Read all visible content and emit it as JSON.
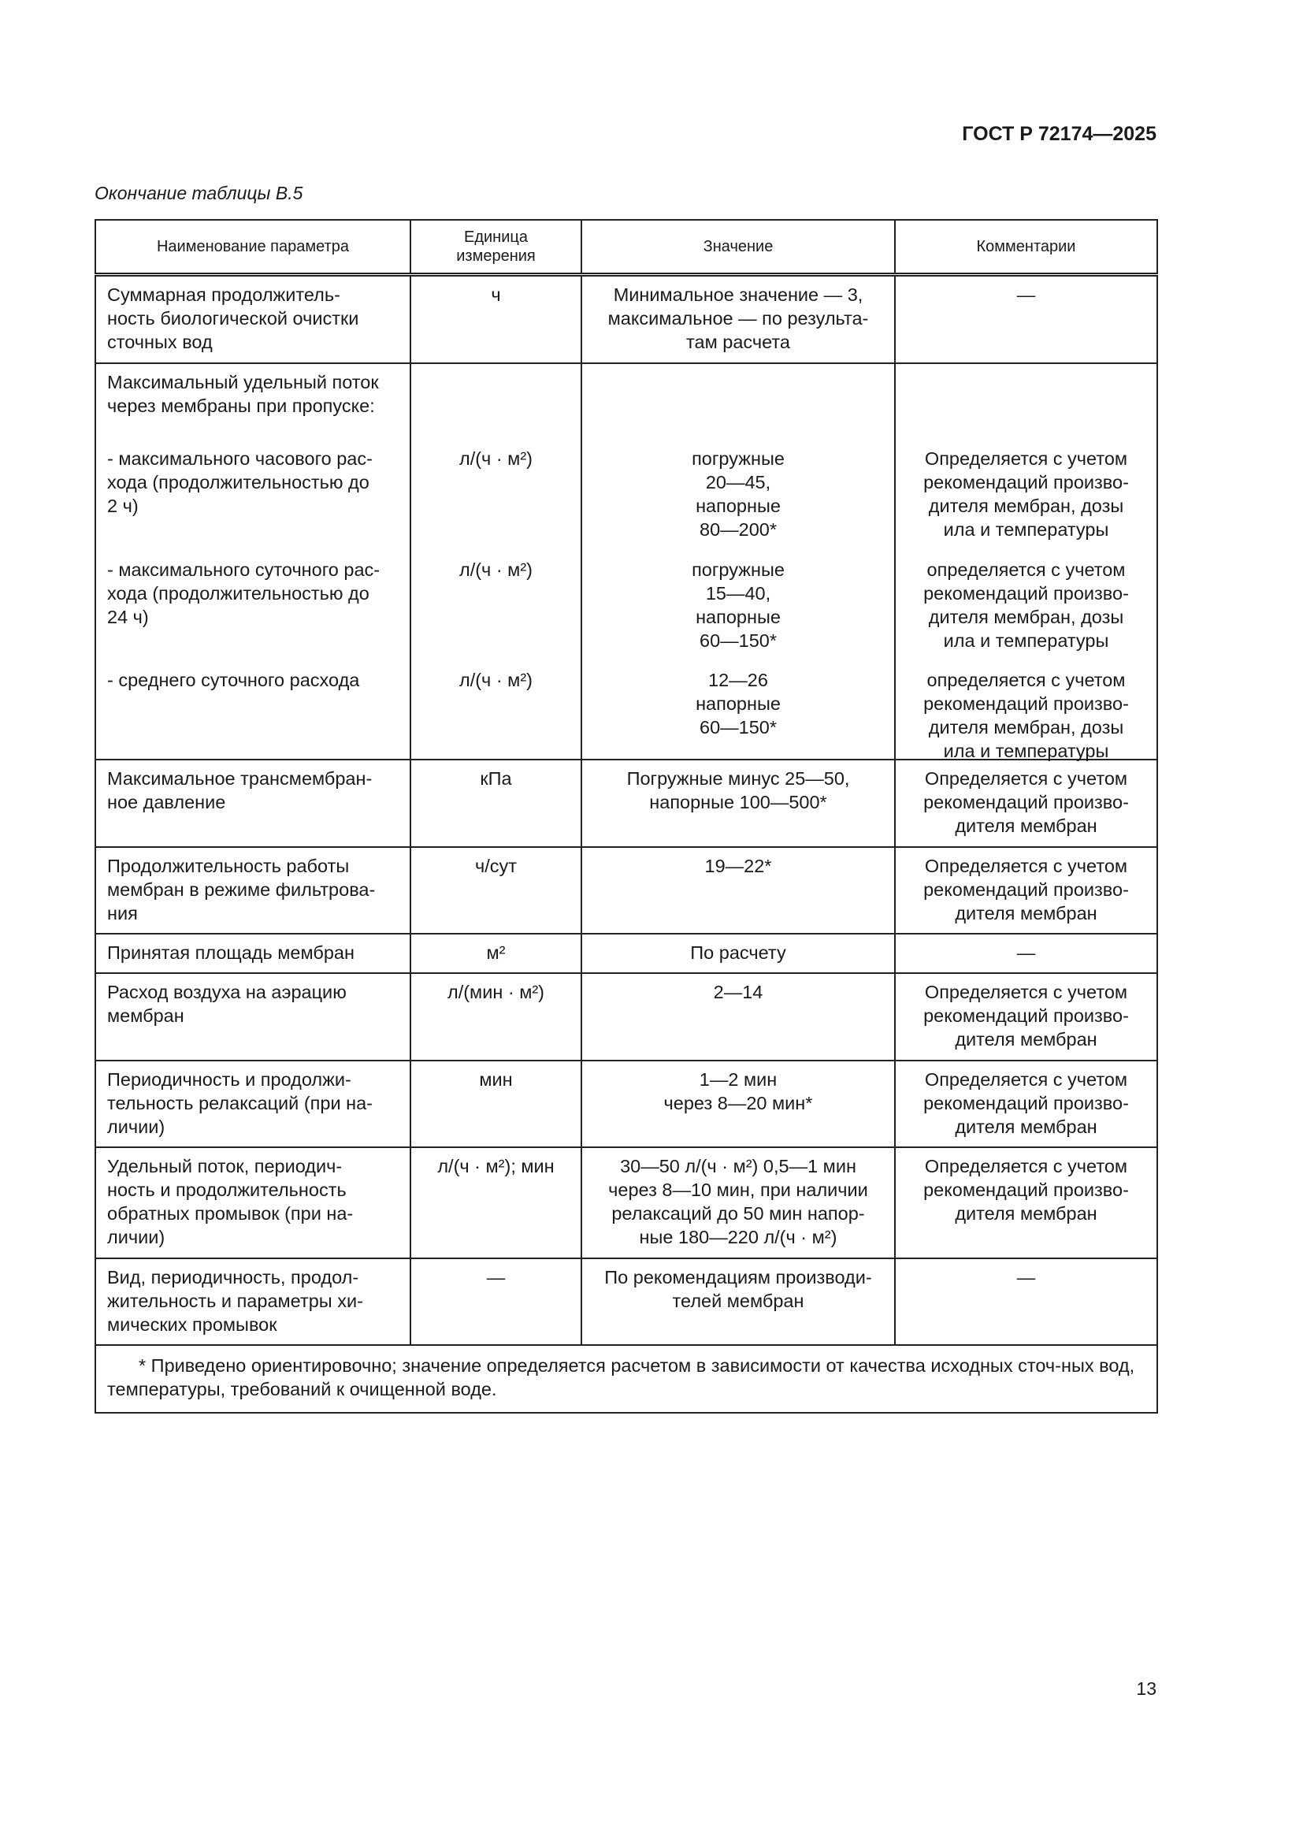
{
  "header": {
    "doc_code": "ГОСТ Р 72174—2025"
  },
  "caption": "Окончание таблицы В.5",
  "table": {
    "columns": [
      "Наименование параметра",
      "Единица\nизмерения",
      "Значение",
      "Комментарии"
    ],
    "rows": [
      {
        "param": "Суммарная продолжитель-\nность биологической очистки\nсточных вод",
        "unit": "ч",
        "value": "Минимальное значение — 3,\nмаксимальное — по результа-\nтам расчета",
        "comment": "—"
      },
      {
        "param": "Максимальный удельный поток\nчерез мембраны при пропуске:",
        "subitems": [
          {
            "param": "- максимального часового рас-\nхода (продолжительностью до\n2 ч)",
            "unit": "л/(ч · м²)",
            "value": "погружные\n20—45,\nнапорные\n80—200*",
            "comment": "Определяется с учетом\nрекомендаций произво-\nдителя мембран, дозы\nила и температуры"
          },
          {
            "param": "- максимального суточного рас-\nхода (продолжительностью до\n24 ч)",
            "unit": "л/(ч · м²)",
            "value": "погружные\n15—40,\nнапорные\n60—150*",
            "comment": "определяется с учетом\nрекомендаций произво-\nдителя мембран, дозы\nила и температуры"
          },
          {
            "param": "- среднего суточного расхода",
            "unit": "л/(ч · м²)",
            "value": "12—26\nнапорные\n60—150*",
            "comment": "определяется с учетом\nрекомендаций произво-\nдителя мембран, дозы\nила и температуры"
          }
        ]
      },
      {
        "param": "Максимальное трансмембран-\nное давление",
        "unit": "кПа",
        "value": "Погружные минус 25—50,\nнапорные 100—500*",
        "comment": "Определяется с учетом\nрекомендаций произво-\nдителя мембран"
      },
      {
        "param": "Продолжительность работы\nмембран в режиме фильтрова-\nния",
        "unit": "ч/сут",
        "value": "19—22*",
        "comment": "Определяется с учетом\nрекомендаций произво-\nдителя мембран"
      },
      {
        "param": "Принятая площадь мембран",
        "unit": "м²",
        "value": "По расчету",
        "comment": "—"
      },
      {
        "param": "Расход воздуха на аэрацию\nмембран",
        "unit": "л/(мин · м²)",
        "value": "2—14",
        "comment": "Определяется с учетом\nрекомендаций произво-\nдителя мембран"
      },
      {
        "param": "Периодичность и продолжи-\nтельность релаксаций (при на-\nличии)",
        "unit": "мин",
        "value": "1—2 мин\nчерез 8—20 мин*",
        "comment": "Определяется с учетом\nрекомендаций произво-\nдителя мембран"
      },
      {
        "param": "Удельный поток, периодич-\nность и продолжительность\nобратных промывок (при на-\nличии)",
        "unit": "л/(ч · м²); мин",
        "value": "30—50 л/(ч · м²) 0,5—1 мин\nчерез 8—10 мин, при наличии\nрелаксаций до 50 мин напор-\nные 180—220 л/(ч · м²)",
        "comment": "Определяется с учетом\nрекомендаций произво-\nдителя мембран"
      },
      {
        "param": "Вид, периодичность, продол-\nжительность и параметры хи-\nмических промывок",
        "unit": "—",
        "value": "По рекомендациям производи-\nтелей мембран",
        "comment": "—"
      }
    ],
    "footnote": "* Приведено ориентировочно; значение определяется расчетом в зависимости от качества исходных сточ-ных вод, температуры, требований к очищенной воде."
  },
  "page_number": "13"
}
